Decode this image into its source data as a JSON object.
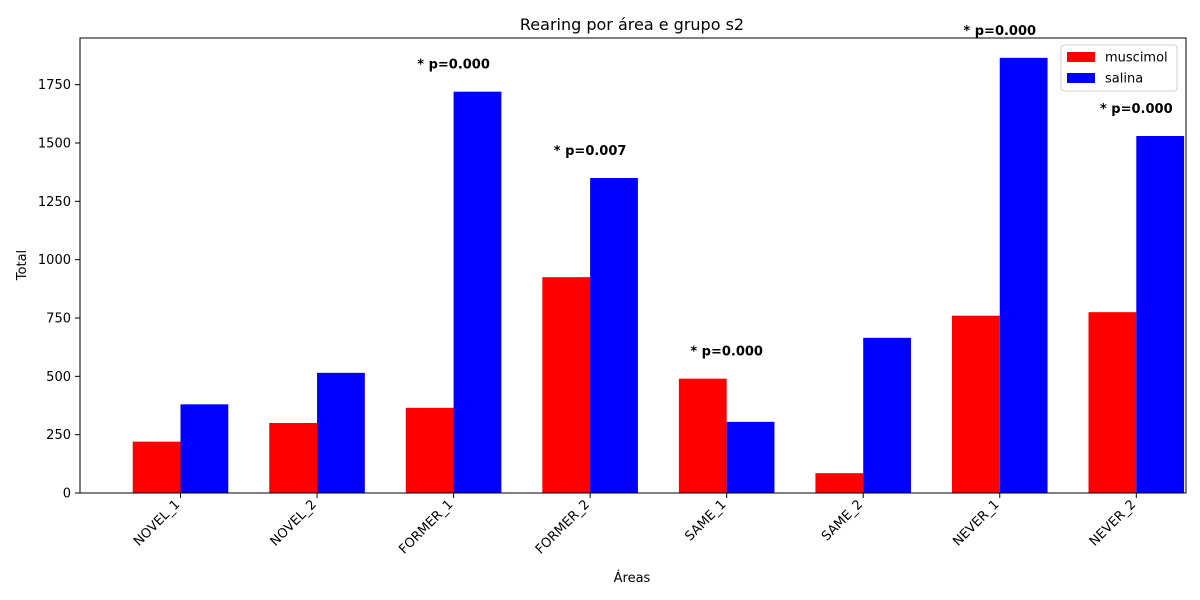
{
  "chart_data": {
    "type": "bar",
    "title": "Rearing por área e grupo s2",
    "xlabel": "Áreas",
    "ylabel": "Total",
    "ylim": [
      0,
      1950
    ],
    "yticks": [
      0,
      250,
      500,
      750,
      1000,
      1250,
      1500,
      1750
    ],
    "grid": false,
    "legend_position": "top-right",
    "categories": [
      "NOVEL_1",
      "NOVEL_2",
      "FORMER_1",
      "FORMER_2",
      "SAME_1",
      "SAME_2",
      "NEVER_1",
      "NEVER_2"
    ],
    "series": [
      {
        "name": "muscimol",
        "color": "#ff0000",
        "values": [
          220,
          300,
          365,
          925,
          490,
          85,
          760,
          775
        ]
      },
      {
        "name": "salina",
        "color": "#0000ff",
        "values": [
          380,
          515,
          1720,
          1350,
          305,
          665,
          1865,
          1530
        ]
      }
    ],
    "annotations": [
      {
        "category": "FORMER_1",
        "text": "* p=0.000"
      },
      {
        "category": "FORMER_2",
        "text": "* p=0.007"
      },
      {
        "category": "SAME_1",
        "text": "* p=0.000"
      },
      {
        "category": "NEVER_1",
        "text": "* p=0.000"
      },
      {
        "category": "NEVER_2",
        "text": "* p=0.000"
      }
    ]
  }
}
